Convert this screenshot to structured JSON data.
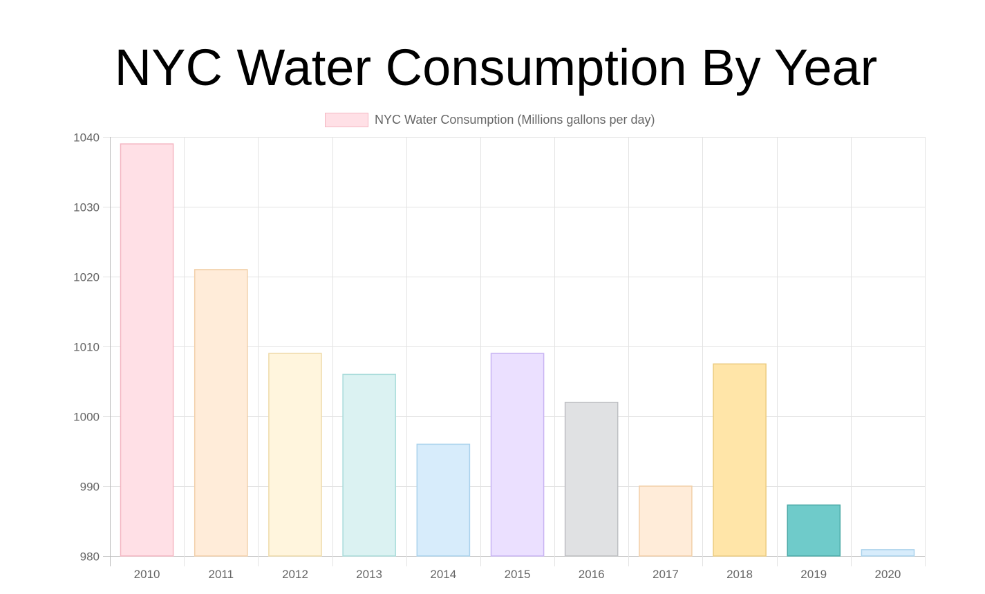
{
  "page": {
    "title": "NYC Water Consumption By Year"
  },
  "chart_data": {
    "type": "bar",
    "title": "NYC Water Consumption By Year",
    "xlabel": "",
    "ylabel": "",
    "categories": [
      "2010",
      "2011",
      "2012",
      "2013",
      "2014",
      "2015",
      "2016",
      "2017",
      "2018",
      "2019",
      "2020"
    ],
    "series": [
      {
        "name": "NYC Water Consumption (Millions gallons per day)",
        "values": [
          1039,
          1021,
          1009,
          1006,
          996,
          1009,
          1002,
          990,
          1007.5,
          987.3,
          980.9
        ]
      }
    ],
    "ylim": [
      980,
      1040
    ],
    "yticks": [
      980,
      990,
      1000,
      1010,
      1020,
      1030,
      1040
    ],
    "grid": true,
    "legend_position": "top",
    "legend_color": "#ffe0e6",
    "legend_border": "#f4b6c2",
    "bar_fills": [
      "#ffe0e6",
      "#ffecd9",
      "#fff5dd",
      "#dbf2f2",
      "#d7ecfb",
      "#ebe0ff",
      "#e0e1e3",
      "#ffecd9",
      "#ffe5a8",
      "#6fcbca",
      "#d7ecfb"
    ],
    "bar_borders": [
      "#f4b6c2",
      "#f2cfa8",
      "#efdbaa",
      "#a9dcdb",
      "#a9d2ec",
      "#c8b4f3",
      "#bdbec2",
      "#f2cfa8",
      "#ebcb7f",
      "#4ba9a7",
      "#a9d2ec"
    ]
  }
}
